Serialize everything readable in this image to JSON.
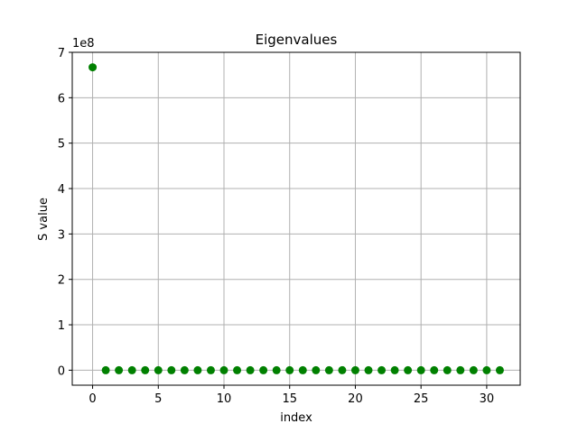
{
  "chart_data": {
    "type": "scatter",
    "title": "Eigenvalues",
    "xlabel": "index",
    "ylabel": "S value",
    "y_offset_label": "1e8",
    "xlim": [
      -1.55,
      32.55
    ],
    "ylim": [
      -33000000,
      700000000
    ],
    "x_ticks": [
      0,
      5,
      10,
      15,
      20,
      25,
      30
    ],
    "y_ticks": [
      0,
      100000000,
      200000000,
      300000000,
      400000000,
      500000000,
      600000000,
      700000000
    ],
    "y_tick_labels": [
      "0",
      "1",
      "2",
      "3",
      "4",
      "5",
      "6",
      "7"
    ],
    "grid": true,
    "series": [
      {
        "color": "#008000",
        "marker": "circle",
        "x": [
          0,
          1,
          2,
          3,
          4,
          5,
          6,
          7,
          8,
          9,
          10,
          11,
          12,
          13,
          14,
          15,
          16,
          17,
          18,
          19,
          20,
          21,
          22,
          23,
          24,
          25,
          26,
          27,
          28,
          29,
          30,
          31
        ],
        "y": [
          667000000,
          0,
          0,
          0,
          0,
          0,
          0,
          0,
          0,
          0,
          0,
          0,
          0,
          0,
          0,
          0,
          0,
          0,
          0,
          0,
          0,
          0,
          0,
          0,
          0,
          0,
          0,
          0,
          0,
          0,
          0,
          0
        ]
      }
    ]
  }
}
